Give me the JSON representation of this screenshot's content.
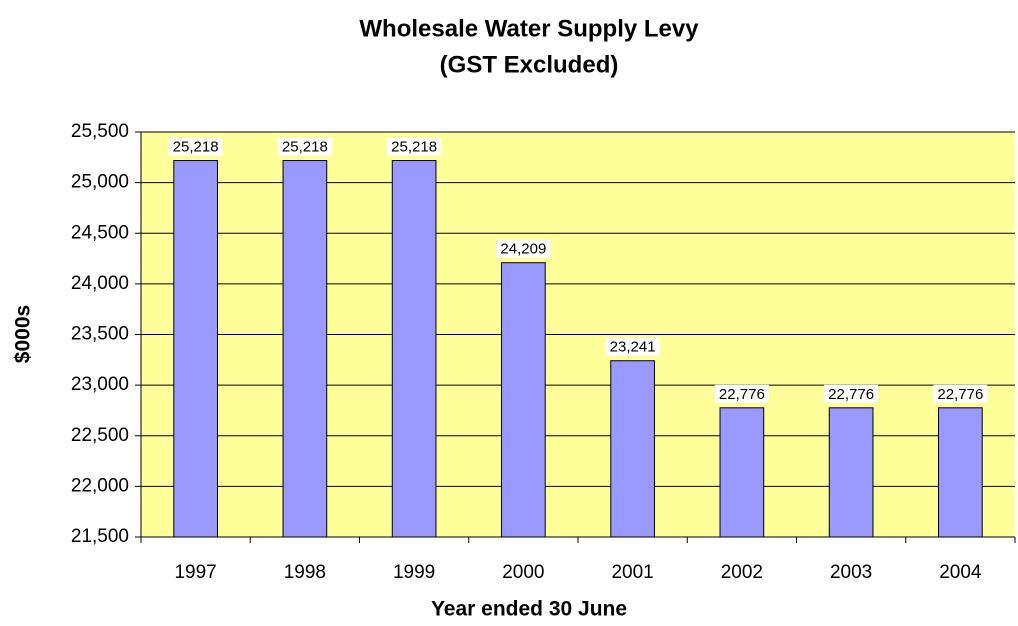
{
  "chart_data": {
    "type": "bar",
    "title": "Wholesale Water Supply Levy",
    "subtitle": "(GST Excluded)",
    "x_label": "Year ended 30 June",
    "y_label": "$000s",
    "categories": [
      "1997",
      "1998",
      "1999",
      "2000",
      "2001",
      "2002",
      "2003",
      "2004"
    ],
    "values": [
      25218,
      25218,
      25218,
      24209,
      23241,
      22776,
      22776,
      22776
    ],
    "value_labels": [
      "25,218",
      "25,218",
      "25,218",
      "24,209",
      "23,241",
      "22,776",
      "22,776",
      "22,776"
    ],
    "color": "#9999ff",
    "background": "#ffff99",
    "ylim": [
      21500,
      25500
    ],
    "yticks": [
      {
        "value": 21500,
        "label": "21,500"
      },
      {
        "value": 22000,
        "label": "22,000"
      },
      {
        "value": 22500,
        "label": "22,500"
      },
      {
        "value": 23000,
        "label": "23,000"
      },
      {
        "value": 23500,
        "label": "23,500"
      },
      {
        "value": 24000,
        "label": "24,000"
      },
      {
        "value": 24500,
        "label": "24,500"
      },
      {
        "value": 25000,
        "label": "25,000"
      },
      {
        "value": 25500,
        "label": "25,500"
      }
    ],
    "grid": true
  }
}
